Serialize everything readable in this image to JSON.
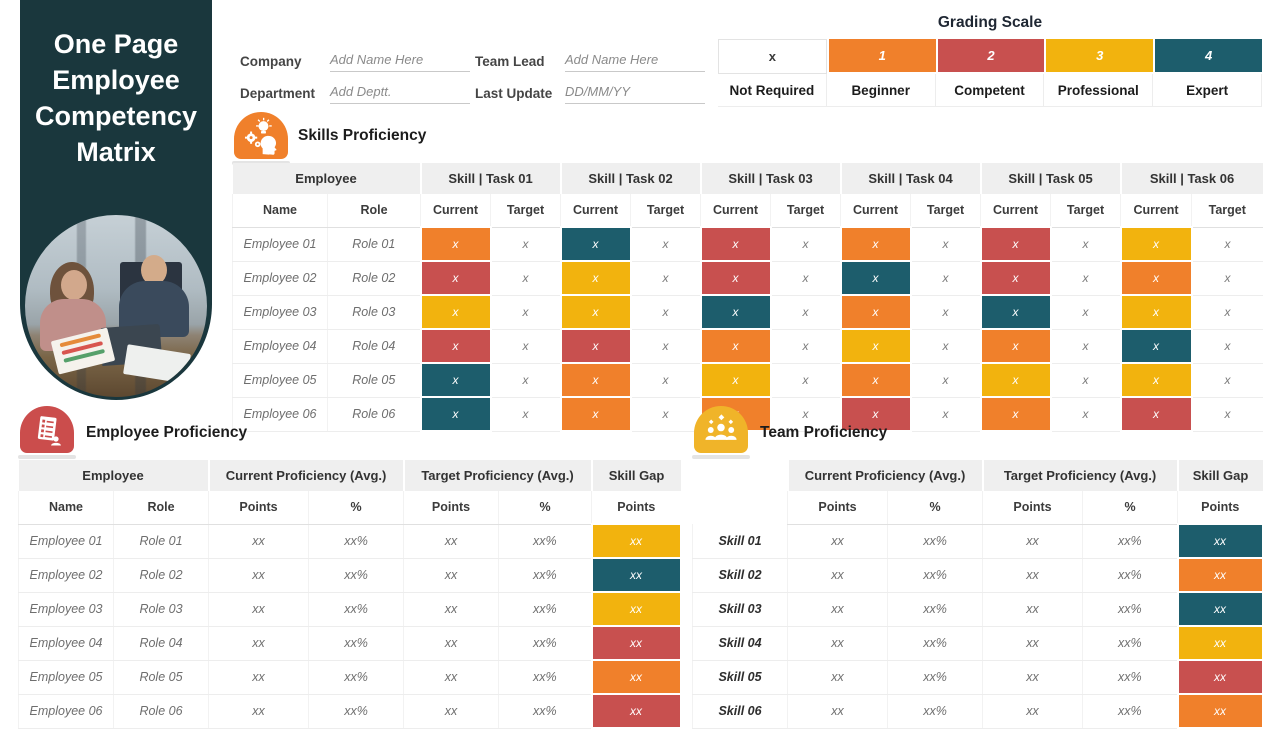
{
  "slide": {
    "title": "One Page Employee Competency Matrix"
  },
  "palette": {
    "level1": "#F0802B",
    "level2": "#C8504F",
    "level3": "#F2B30E",
    "level4": "#1D5D6C",
    "sidebar_bg": "#1A373D",
    "skills_icon_bg": "#F0802B",
    "employee_icon_bg": "#CB4D4C",
    "team_icon_bg": "#F0B429"
  },
  "form": {
    "company_label": "Company",
    "company_value": "Add Name Here",
    "department_label": "Department",
    "department_value": "Add Deptt.",
    "team_lead_label": "Team Lead",
    "team_lead_value": "Add Name Here",
    "last_update_label": "Last Update",
    "last_update_value": "DD/MM/YY"
  },
  "grading_scale": {
    "title": "Grading Scale",
    "levels": [
      {
        "code": "x",
        "label": "Not Required",
        "color": "#FFFFFF",
        "text_color": "#3A3A3A"
      },
      {
        "code": "1",
        "label": "Beginner",
        "color": "#F0802B",
        "text_color": "#FFFFFF"
      },
      {
        "code": "2",
        "label": "Competent",
        "color": "#C8504F",
        "text_color": "#FFFFFF"
      },
      {
        "code": "3",
        "label": "Professional",
        "color": "#F2B30E",
        "text_color": "#FFFFFF"
      },
      {
        "code": "4",
        "label": "Expert",
        "color": "#1D5D6C",
        "text_color": "#FFFFFF"
      }
    ]
  },
  "skills": {
    "section_title": "Skills Proficiency",
    "employee_group_header": "Employee",
    "task_headers": [
      "Skill | Task 01",
      "Skill | Task 02",
      "Skill | Task 03",
      "Skill | Task 04",
      "Skill | Task 05",
      "Skill | Task 06"
    ],
    "name_header": "Name",
    "role_header": "Role",
    "current_header": "Current",
    "target_header": "Target",
    "current_mark": "x",
    "target_mark": "x",
    "rows": [
      {
        "name": "Employee 01",
        "role": "Role 01",
        "current_levels": [
          1,
          4,
          2,
          1,
          2,
          3
        ]
      },
      {
        "name": "Employee 02",
        "role": "Role 02",
        "current_levels": [
          2,
          3,
          2,
          4,
          2,
          1
        ]
      },
      {
        "name": "Employee 03",
        "role": "Role 03",
        "current_levels": [
          3,
          3,
          4,
          1,
          4,
          3
        ]
      },
      {
        "name": "Employee 04",
        "role": "Role 04",
        "current_levels": [
          2,
          2,
          1,
          3,
          1,
          4
        ]
      },
      {
        "name": "Employee 05",
        "role": "Role 05",
        "current_levels": [
          4,
          1,
          3,
          1,
          3,
          3
        ]
      },
      {
        "name": "Employee 06",
        "role": "Role 06",
        "current_levels": [
          4,
          1,
          1,
          2,
          1,
          2
        ]
      }
    ]
  },
  "employee_proficiency": {
    "section_title": "Employee Proficiency",
    "employee_group_header": "Employee",
    "current_group_header": "Current Proficiency (Avg.)",
    "target_group_header": "Target Proficiency (Avg.)",
    "gap_group_header": "Skill Gap",
    "name_header": "Name",
    "role_header": "Role",
    "points_header": "Points",
    "percent_header": "%",
    "rows": [
      {
        "name": "Employee 01",
        "role": "Role 01",
        "current_points": "xx",
        "current_percent": "xx%",
        "target_points": "xx",
        "target_percent": "xx%",
        "gap_points": "xx",
        "gap_level": 3
      },
      {
        "name": "Employee 02",
        "role": "Role 02",
        "current_points": "xx",
        "current_percent": "xx%",
        "target_points": "xx",
        "target_percent": "xx%",
        "gap_points": "xx",
        "gap_level": 4
      },
      {
        "name": "Employee 03",
        "role": "Role 03",
        "current_points": "xx",
        "current_percent": "xx%",
        "target_points": "xx",
        "target_percent": "xx%",
        "gap_points": "xx",
        "gap_level": 3
      },
      {
        "name": "Employee 04",
        "role": "Role 04",
        "current_points": "xx",
        "current_percent": "xx%",
        "target_points": "xx",
        "target_percent": "xx%",
        "gap_points": "xx",
        "gap_level": 2
      },
      {
        "name": "Employee 05",
        "role": "Role 05",
        "current_points": "xx",
        "current_percent": "xx%",
        "target_points": "xx",
        "target_percent": "xx%",
        "gap_points": "xx",
        "gap_level": 1
      },
      {
        "name": "Employee 06",
        "role": "Role 06",
        "current_points": "xx",
        "current_percent": "xx%",
        "target_points": "xx",
        "target_percent": "xx%",
        "gap_points": "xx",
        "gap_level": 2
      }
    ]
  },
  "team_proficiency": {
    "section_title": "Team Proficiency",
    "current_group_header": "Current Proficiency (Avg.)",
    "target_group_header": "Target Proficiency (Avg.)",
    "gap_group_header": "Skill Gap",
    "points_header": "Points",
    "percent_header": "%",
    "rows": [
      {
        "skill": "Skill 01",
        "current_points": "xx",
        "current_percent": "xx%",
        "target_points": "xx",
        "target_percent": "xx%",
        "gap_points": "xx",
        "gap_level": 4
      },
      {
        "skill": "Skill 02",
        "current_points": "xx",
        "current_percent": "xx%",
        "target_points": "xx",
        "target_percent": "xx%",
        "gap_points": "xx",
        "gap_level": 1
      },
      {
        "skill": "Skill 03",
        "current_points": "xx",
        "current_percent": "xx%",
        "target_points": "xx",
        "target_percent": "xx%",
        "gap_points": "xx",
        "gap_level": 4
      },
      {
        "skill": "Skill 04",
        "current_points": "xx",
        "current_percent": "xx%",
        "target_points": "xx",
        "target_percent": "xx%",
        "gap_points": "xx",
        "gap_level": 3
      },
      {
        "skill": "Skill 05",
        "current_points": "xx",
        "current_percent": "xx%",
        "target_points": "xx",
        "target_percent": "xx%",
        "gap_points": "xx",
        "gap_level": 2
      },
      {
        "skill": "Skill 06",
        "current_points": "xx",
        "current_percent": "xx%",
        "target_points": "xx",
        "target_percent": "xx%",
        "gap_points": "xx",
        "gap_level": 1
      }
    ]
  }
}
